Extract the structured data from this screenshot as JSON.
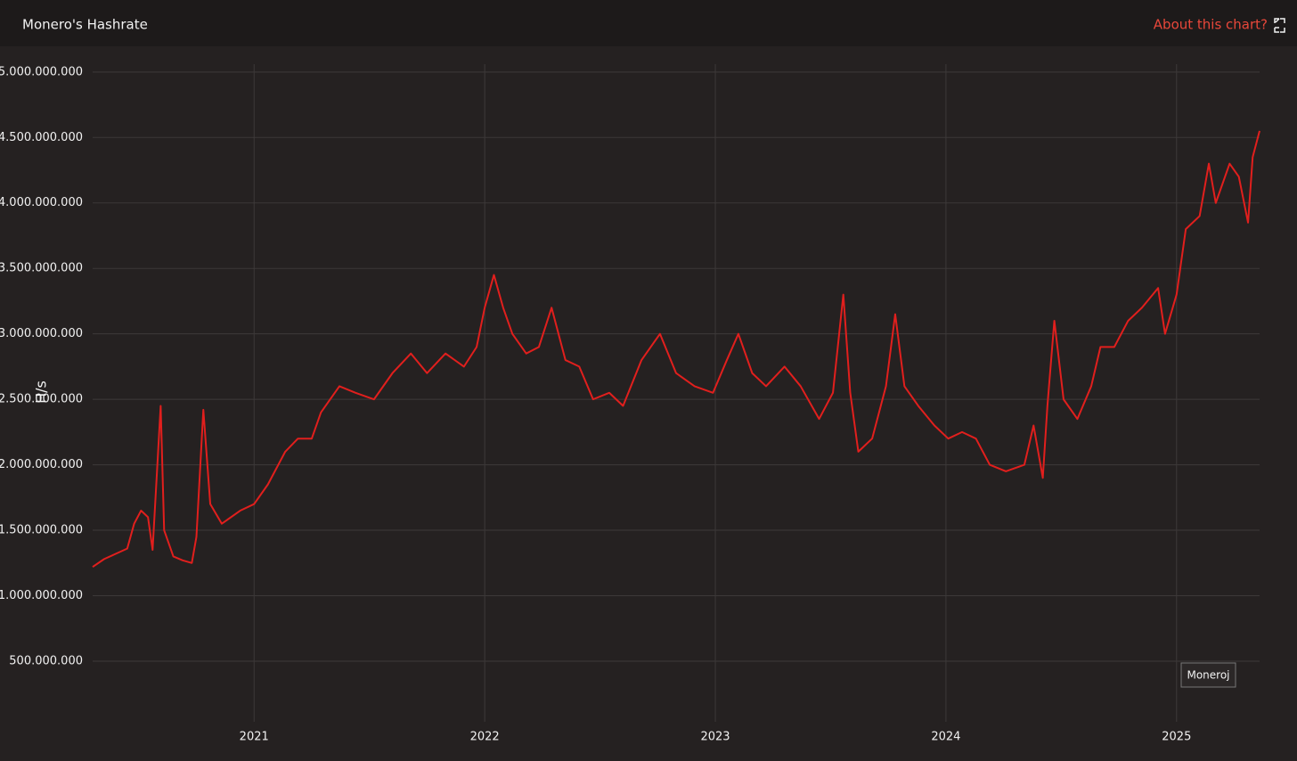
{
  "chart_data": {
    "type": "line",
    "title": "Monero's Hashrate",
    "link_text": "About this chart?",
    "y_label": "H/s",
    "watermark": "Moneroj",
    "grid": true,
    "xlim": [
      2020.3,
      2025.36
    ],
    "xticks": [
      2021,
      2022,
      2023,
      2024,
      2025
    ],
    "ylim": [
      37000000,
      5060000000
    ],
    "yticks": [
      {
        "value": 500000000,
        "label": "500.000.000"
      },
      {
        "value": 1000000000,
        "label": "1.000.000.000"
      },
      {
        "value": 1500000000,
        "label": "1.500.000.000"
      },
      {
        "value": 2000000000,
        "label": "2.000.000.000"
      },
      {
        "value": 2500000000,
        "label": "2.500.000.000"
      },
      {
        "value": 3000000000,
        "label": "3.000.000.000"
      },
      {
        "value": 3500000000,
        "label": "3.500.000.000"
      },
      {
        "value": 4000000000,
        "label": "4.000.000.000"
      },
      {
        "value": 4500000000,
        "label": "4.500.000.000"
      },
      {
        "value": 5000000000,
        "label": "5.000.000.000"
      }
    ],
    "x": [
      2020.3,
      2020.35,
      2020.4,
      2020.45,
      2020.48,
      2020.51,
      2020.54,
      2020.56,
      2020.595,
      2020.61,
      2020.65,
      2020.69,
      2020.73,
      2020.75,
      2020.78,
      2020.81,
      2020.86,
      2020.94,
      2021.0,
      2021.06,
      2021.135,
      2021.19,
      2021.25,
      2021.29,
      2021.37,
      2021.44,
      2021.52,
      2021.6,
      2021.68,
      2021.75,
      2021.83,
      2021.91,
      2021.965,
      2022.0,
      2022.04,
      2022.08,
      2022.12,
      2022.18,
      2022.235,
      2022.29,
      2022.35,
      2022.41,
      2022.47,
      2022.54,
      2022.6,
      2022.68,
      2022.76,
      2022.83,
      2022.91,
      2022.99,
      2023.05,
      2023.1,
      2023.16,
      2023.22,
      2023.3,
      2023.37,
      2023.45,
      2023.51,
      2023.555,
      2023.585,
      2023.62,
      2023.68,
      2023.74,
      2023.78,
      2023.82,
      2023.88,
      2023.95,
      2024.01,
      2024.07,
      2024.13,
      2024.19,
      2024.26,
      2024.34,
      2024.38,
      2024.42,
      2024.44,
      2024.47,
      2024.51,
      2024.57,
      2024.63,
      2024.67,
      2024.73,
      2024.79,
      2024.85,
      2024.92,
      2024.95,
      2025.0,
      2025.04,
      2025.1,
      2025.14,
      2025.17,
      2025.23,
      2025.27,
      2025.31,
      2025.33,
      2025.36
    ],
    "series": [
      {
        "name": "Hashrate",
        "color": "#e11f1d",
        "values": [
          1220000000.0,
          1280000000.0,
          1320000000.0,
          1360000000.0,
          1550000000.0,
          1650000000.0,
          1600000000.0,
          1350000000.0,
          2450000000.0,
          1500000000.0,
          1300000000.0,
          1270000000.0,
          1250000000.0,
          1450000000.0,
          2420000000.0,
          1700000000.0,
          1550000000.0,
          1650000000.0,
          1700000000.0,
          1850000000.0,
          2100000000.0,
          2200000000.0,
          2200000000.0,
          2400000000.0,
          2600000000.0,
          2550000000.0,
          2500000000.0,
          2700000000.0,
          2850000000.0,
          2700000000.0,
          2850000000.0,
          2750000000.0,
          2900000000.0,
          3200000000.0,
          3450000000.0,
          3200000000.0,
          3000000000.0,
          2850000000.0,
          2900000000.0,
          3200000000.0,
          2800000000.0,
          2750000000.0,
          2500000000.0,
          2550000000.0,
          2450000000.0,
          2800000000.0,
          3000000000.0,
          2700000000.0,
          2600000000.0,
          2550000000.0,
          2800000000.0,
          3000000000.0,
          2700000000.0,
          2600000000.0,
          2750000000.0,
          2600000000.0,
          2350000000.0,
          2550000000.0,
          3300000000.0,
          2550000000.0,
          2100000000.0,
          2200000000.0,
          2600000000.0,
          3150000000.0,
          2600000000.0,
          2450000000.0,
          2300000000.0,
          2200000000.0,
          2250000000.0,
          2200000000.0,
          2000000000.0,
          1950000000.0,
          2000000000.0,
          2300000000.0,
          1900000000.0,
          2450000000.0,
          3100000000.0,
          2500000000.0,
          2350000000.0,
          2600000000.0,
          2900000000.0,
          2900000000.0,
          3100000000.0,
          3200000000.0,
          3350000000.0,
          3000000000.0,
          3300000000.0,
          3800000000.0,
          3900000000.0,
          4300000000.0,
          4000000000.0,
          4300000000.0,
          4200000000.0,
          3850000000.0,
          4350000000.0,
          4550000000.0
        ]
      }
    ]
  }
}
